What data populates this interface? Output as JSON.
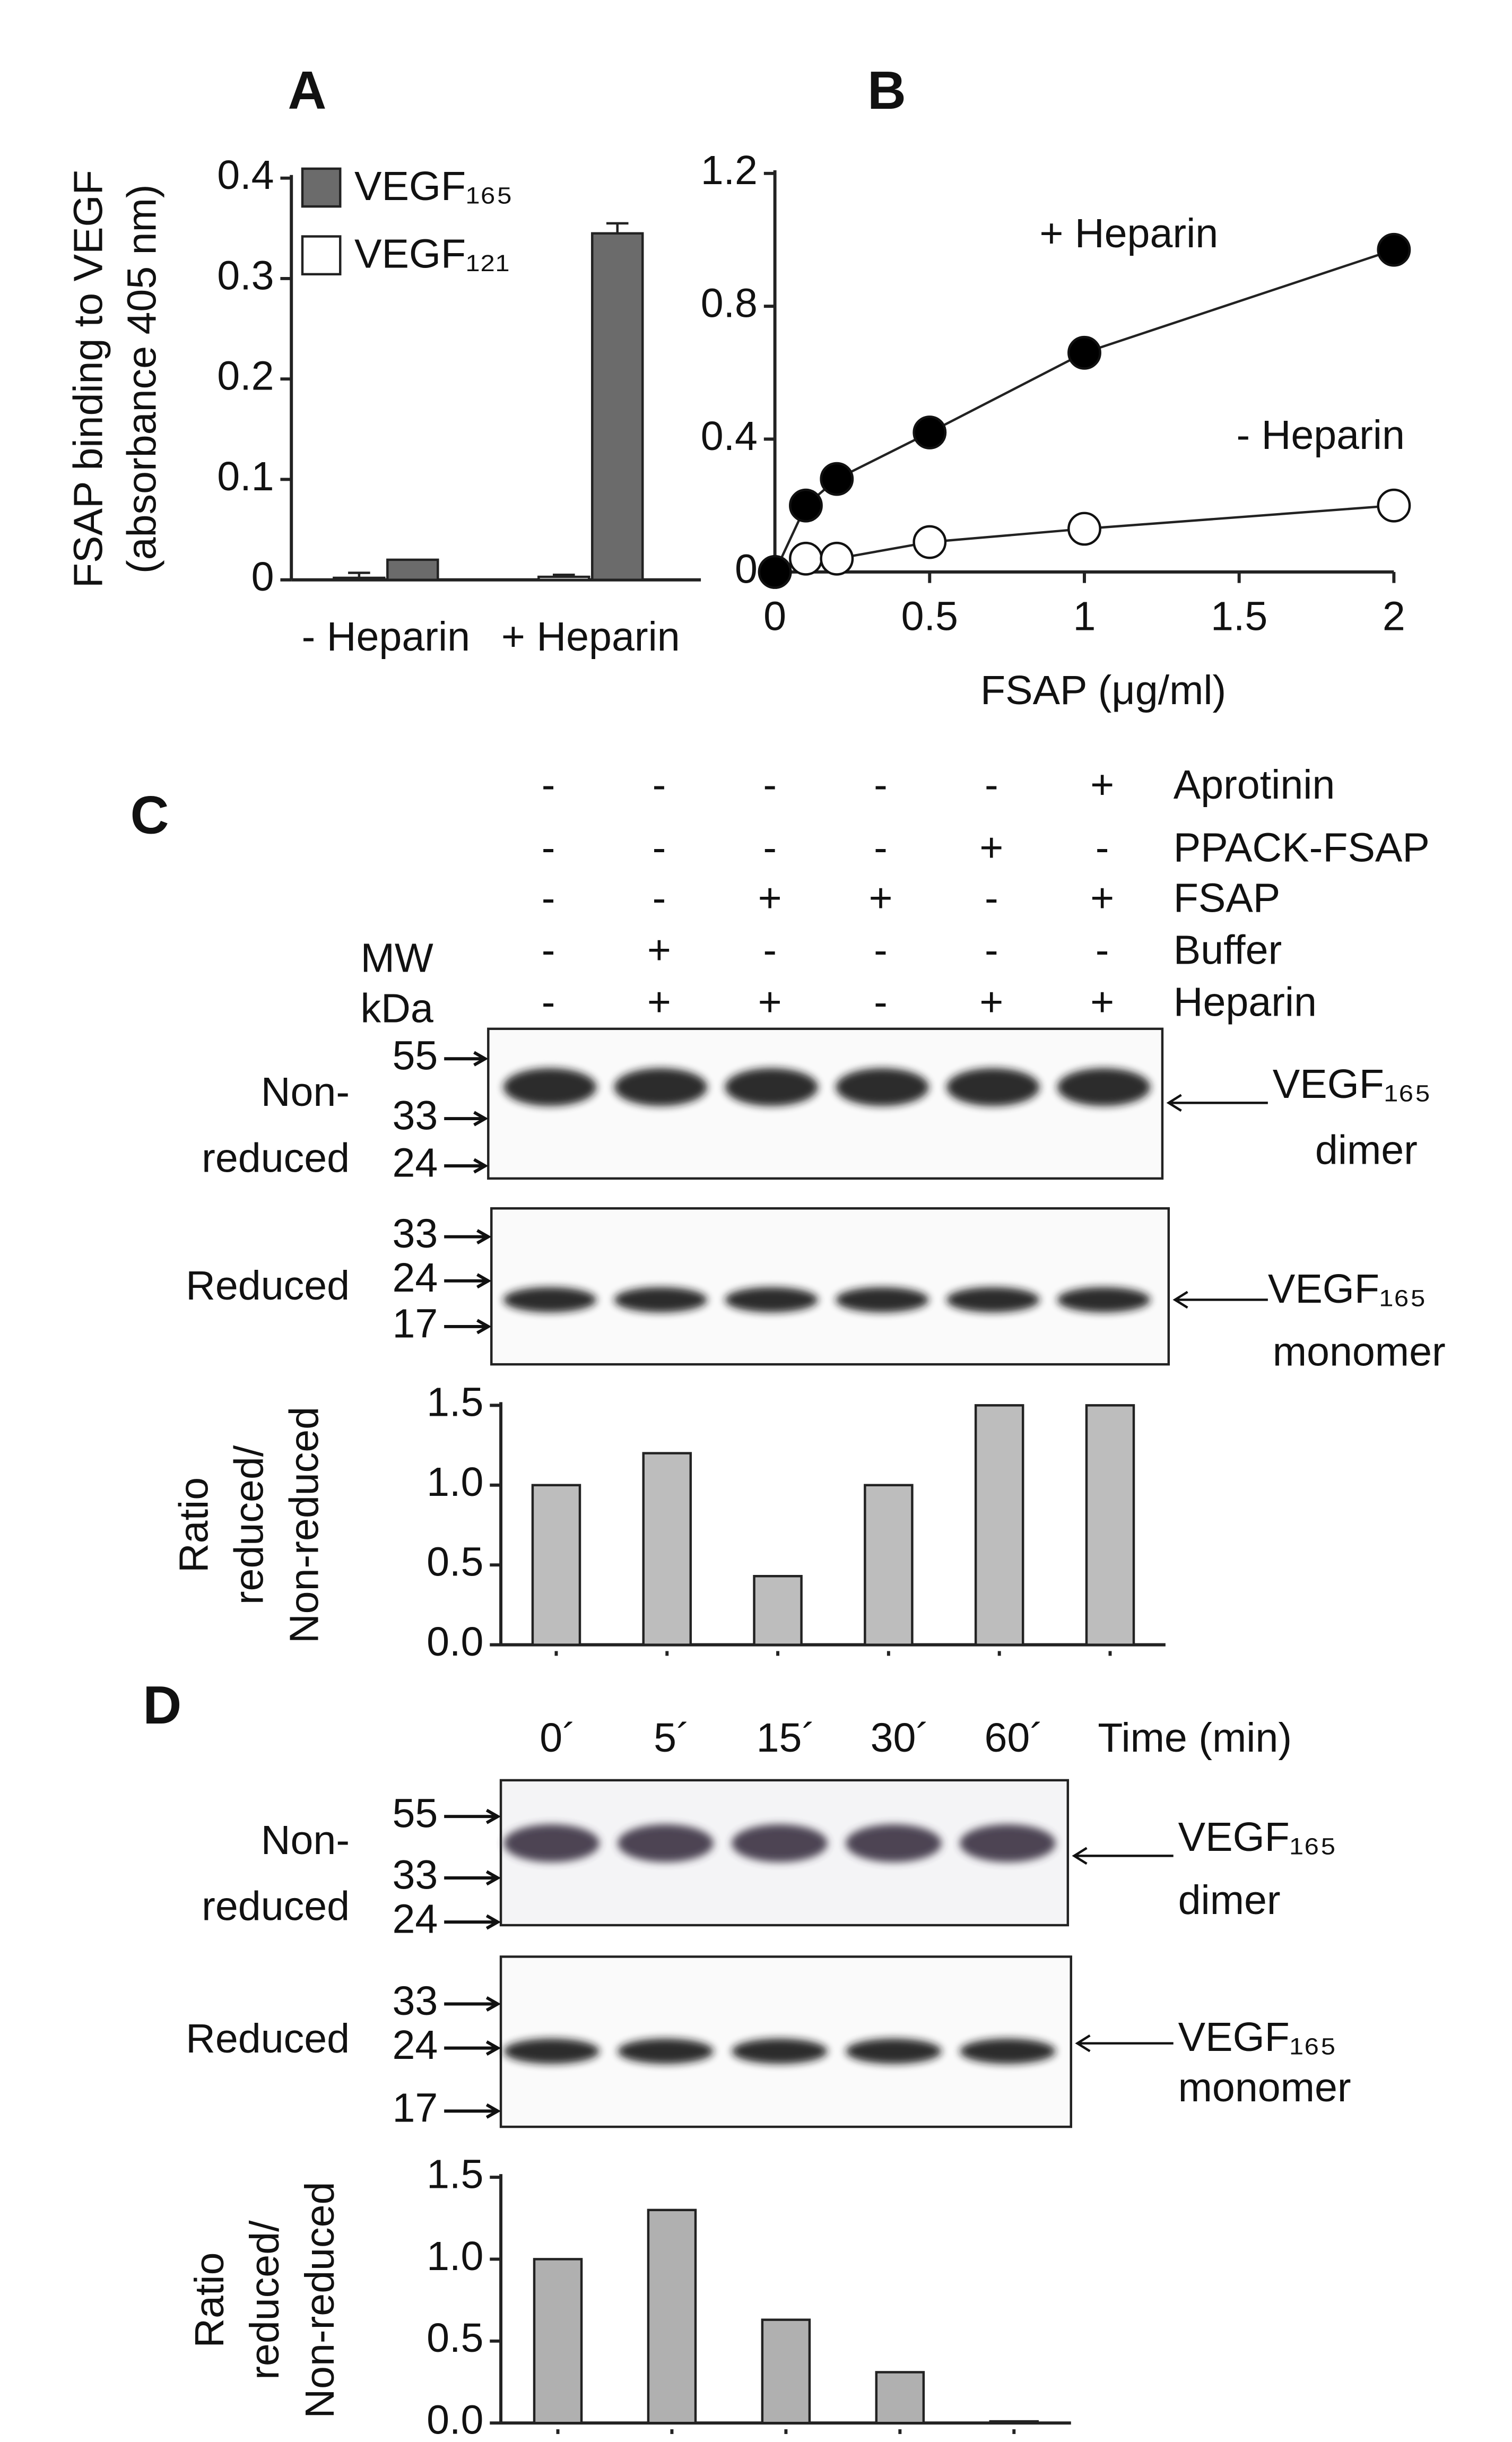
{
  "chart_data": [
    {
      "type": "bar",
      "panel_label": "A",
      "ylabel": [
        "FSAP binding to VEGF",
        "(absorbance 405 nm)"
      ],
      "categories": [
        "- Heparin",
        "+ Heparin"
      ],
      "series": [
        {
          "name": "VEGF₁₆₅",
          "color": "#6b6b6b",
          "values": [
            0.02,
            0.345
          ],
          "errors": [
            null,
            0.01
          ]
        },
        {
          "name": "VEGF₁₂₁",
          "color": "#ffffff",
          "values": [
            0.002,
            0.003
          ],
          "errors": [
            0.005,
            0.002
          ]
        }
      ],
      "ylim": [
        0,
        0.4
      ],
      "yticks": [
        0,
        0.1,
        0.2,
        0.3,
        0.4
      ],
      "legend": "top-left",
      "grid": false
    },
    {
      "type": "line",
      "panel_label": "B",
      "xlabel": "FSAP (μg/ml)",
      "x": [
        0,
        0.1,
        0.2,
        0.5,
        1,
        2
      ],
      "series": [
        {
          "name": "+ Heparin",
          "color": "#000000",
          "values": [
            0,
            0.2,
            0.28,
            0.42,
            0.66,
            0.97
          ]
        },
        {
          "name": "- Heparin",
          "color": "#ffffff",
          "values": [
            0,
            0.04,
            0.04,
            0.09,
            0.13,
            0.2
          ]
        }
      ],
      "xlim": [
        0,
        2
      ],
      "xticks": [
        0,
        0.5,
        1,
        1.5,
        2
      ],
      "ylim": [
        0,
        1.2
      ],
      "yticks": [
        0,
        0.4,
        0.8,
        1.2
      ],
      "grid": false
    },
    {
      "type": "bar",
      "ylabel": [
        "Ratio",
        "reduced/",
        "Non-reduced"
      ],
      "categories": [
        null,
        null,
        null,
        null,
        null,
        null
      ],
      "values": [
        1.0,
        1.2,
        0.43,
        1.0,
        1.5,
        1.5
      ],
      "color": "#bdbdbd",
      "ylim": [
        0,
        1.5
      ],
      "yticks": [
        {
          "value": 0,
          "label": "0.0"
        },
        0.5,
        {
          "value": 1,
          "label": "1.0"
        },
        1.5
      ],
      "grid": false
    },
    {
      "type": "bar",
      "ylabel": [
        "Ratio",
        "reduced/",
        "Non-reduced"
      ],
      "categories": [
        null,
        null,
        null,
        null,
        null
      ],
      "values": [
        1.0,
        1.3,
        0.63,
        0.31,
        0.01
      ],
      "color": "#b0b0b0",
      "ylim": [
        0,
        1.5
      ],
      "yticks": [
        {
          "value": 0,
          "label": "0.0"
        },
        0.5,
        {
          "value": 1,
          "label": "1.0"
        },
        1.5
      ],
      "grid": false
    }
  ],
  "blots": [
    {
      "panel_label": "C",
      "mw_label": "MW",
      "kda_label": "kDa",
      "conditions": [
        {
          "label": "Aprotinin",
          "signs": [
            "-",
            "-",
            "-",
            "-",
            "-",
            "+"
          ]
        },
        {
          "label": "PPACK-FSAP",
          "signs": [
            "-",
            "-",
            "-",
            "-",
            "+",
            "-"
          ]
        },
        {
          "label": "FSAP",
          "signs": [
            "-",
            "-",
            "+",
            "+",
            "-",
            "+"
          ]
        },
        {
          "label": "Buffer",
          "signs": [
            "-",
            "+",
            "-",
            "-",
            "-",
            "-"
          ]
        },
        {
          "label": "Heparin",
          "signs": [
            "-",
            "+",
            "+",
            "-",
            "+",
            "+"
          ]
        }
      ],
      "gels": [
        {
          "label": [
            "Non-",
            "reduced"
          ],
          "markers": [
            55,
            33,
            24
          ],
          "band": [
            "VEGF₁₆₅",
            "dimer"
          ]
        },
        {
          "label": [
            "Reduced"
          ],
          "markers": [
            33,
            24,
            17
          ],
          "band": [
            "VEGF₁₆₅",
            "monomer"
          ]
        }
      ]
    },
    {
      "panel_label": "D",
      "time_points": [
        "0´",
        "5´",
        "15´",
        "30´",
        "60´"
      ],
      "time_label": "Time (min)",
      "gels": [
        {
          "label": [
            "Non-",
            "reduced"
          ],
          "markers": [
            55,
            33,
            24
          ],
          "band": [
            "VEGF₁₆₅",
            "dimer"
          ]
        },
        {
          "label": [
            "Reduced"
          ],
          "markers": [
            33,
            24,
            17
          ],
          "band": [
            "VEGF₁₆₅",
            "monomer"
          ]
        }
      ]
    }
  ]
}
